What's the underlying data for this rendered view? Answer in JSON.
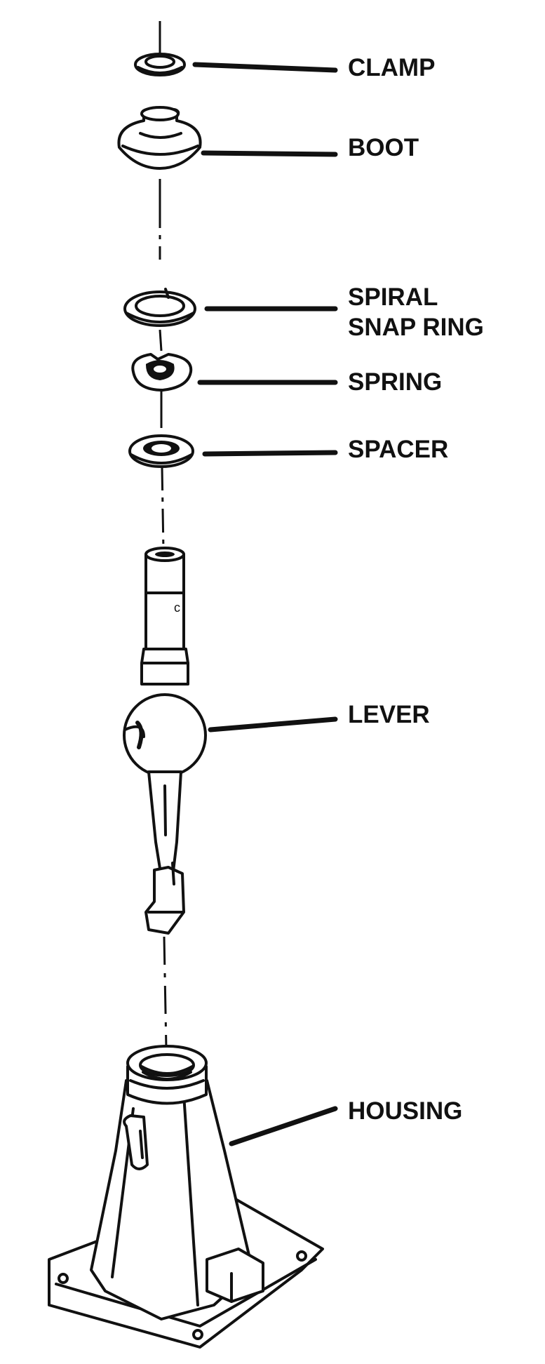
{
  "labels": {
    "clamp": "CLAMP",
    "boot": "BOOT",
    "spiral_line1": "SPIRAL",
    "spiral_line2": "SNAP RING",
    "spring": "SPRING",
    "spacer": "SPACER",
    "lever": "LEVER",
    "housing": "HOUSING"
  }
}
